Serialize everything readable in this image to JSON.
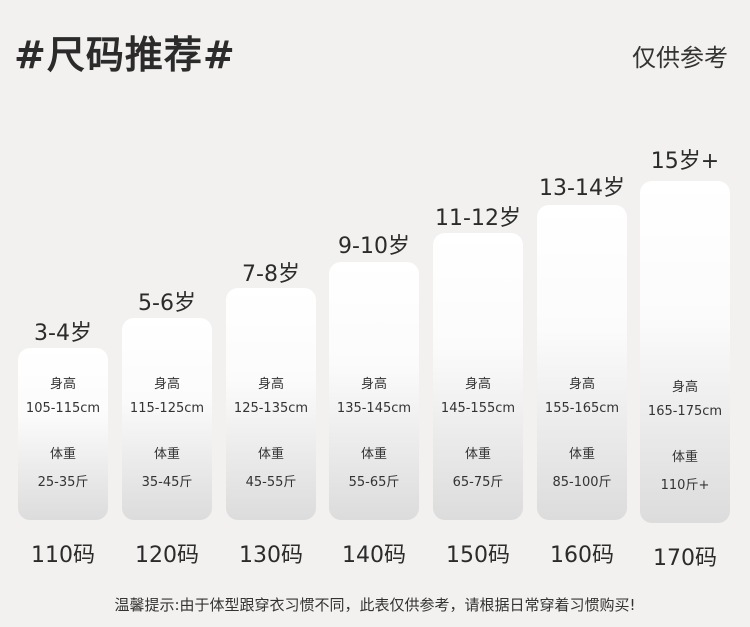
{
  "title": "#尺码推荐#",
  "reference": "仅供参考",
  "height_label": "身高",
  "weight_label": "体重",
  "sizes": [
    {
      "age": "3-4岁",
      "height": "105-115cm",
      "weight": "25-35斤",
      "size": "110码"
    },
    {
      "age": "5-6岁",
      "height": "115-125cm",
      "weight": "35-45斤",
      "size": "120码"
    },
    {
      "age": "7-8岁",
      "height": "125-135cm",
      "weight": "45-55斤",
      "size": "130码"
    },
    {
      "age": "9-10岁",
      "height": "135-145cm",
      "weight": "55-65斤",
      "size": "140码"
    },
    {
      "age": "11-12岁",
      "height": "145-155cm",
      "weight": "65-75斤",
      "size": "150码"
    },
    {
      "age": "13-14岁",
      "height": "155-165cm",
      "weight": "85-100斤",
      "size": "160码"
    },
    {
      "age": "15岁+",
      "height": "165-175cm",
      "weight": "110斤+",
      "size": "170码"
    }
  ],
  "tip": "温馨提示:由于体型跟穿衣习惯不同，此表仅供参考，请根据日常穿着习惯购买!"
}
